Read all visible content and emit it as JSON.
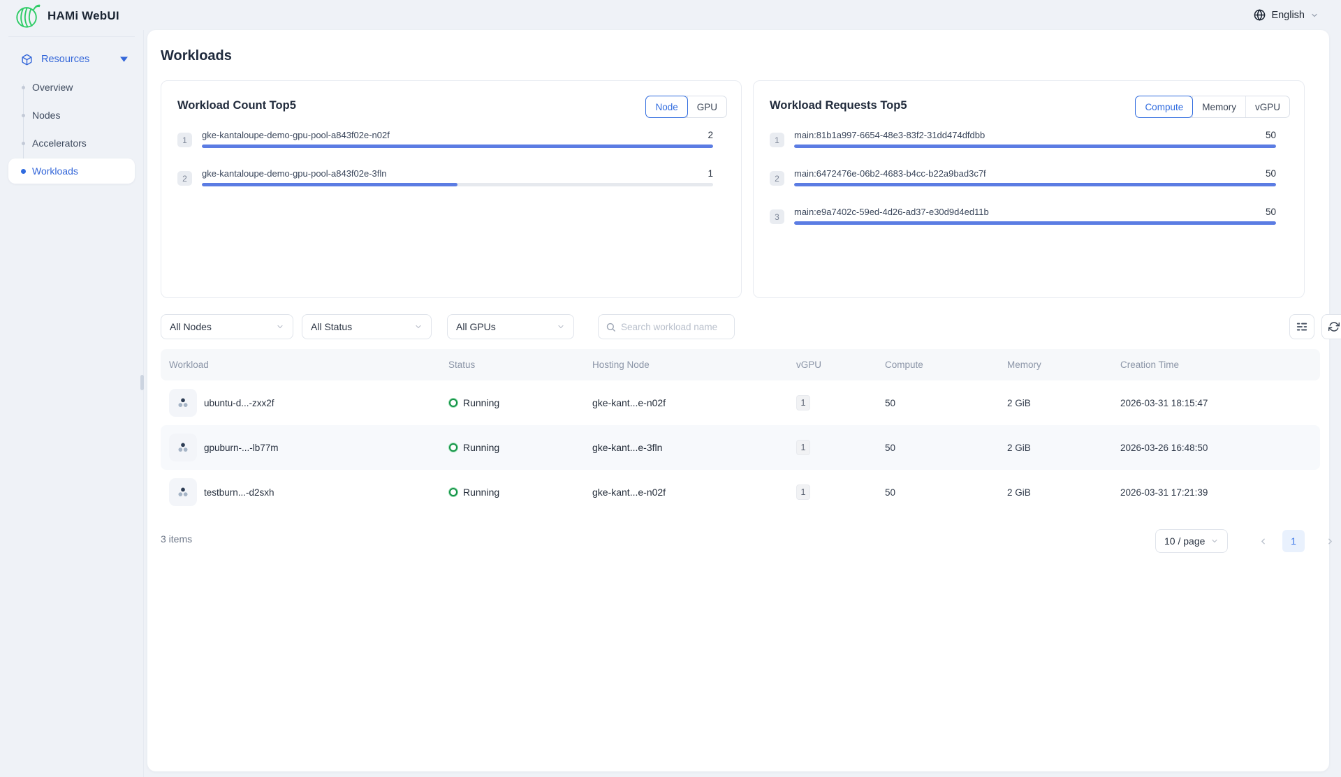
{
  "app": {
    "title": "HAMi WebUI",
    "language": "English"
  },
  "sidebar": {
    "section_label": "Resources",
    "items": [
      {
        "label": "Overview"
      },
      {
        "label": "Nodes"
      },
      {
        "label": "Accelerators"
      },
      {
        "label": "Workloads"
      }
    ]
  },
  "page": {
    "title": "Workloads"
  },
  "chart_data": [
    {
      "type": "bar",
      "title": "Workload Count Top5",
      "toggle_options": [
        "Node",
        "GPU"
      ],
      "selected_toggle": "Node",
      "categories": [
        "gke-kantaloupe-demo-gpu-pool-a843f02e-n02f",
        "gke-kantaloupe-demo-gpu-pool-a843f02e-3fln"
      ],
      "ranks": [
        "1",
        "2"
      ],
      "values": [
        2,
        1
      ],
      "max": 2,
      "bar_color": "#5b7ce3",
      "track_color": "#e6e9ee"
    },
    {
      "type": "bar",
      "title": "Workload Requests Top5",
      "toggle_options": [
        "Compute",
        "Memory",
        "vGPU"
      ],
      "selected_toggle": "Compute",
      "categories": [
        "main:81b1a997-6654-48e3-83f2-31dd474dfdbb",
        "main:6472476e-06b2-4683-b4cc-b22a9bad3c7f",
        "main:e9a7402c-59ed-4d26-ad37-e30d9d4ed11b"
      ],
      "ranks": [
        "1",
        "2",
        "3"
      ],
      "values": [
        50,
        50,
        50
      ],
      "max": 50,
      "bar_color": "#5b7ce3",
      "track_color": "#e6e9ee"
    }
  ],
  "filters": {
    "node_filter": "All Nodes",
    "status_filter": "All Status",
    "gpu_filter": "All GPUs",
    "search_placeholder": "Search workload name"
  },
  "table": {
    "columns": [
      "Workload",
      "Status",
      "Hosting Node",
      "vGPU",
      "Compute",
      "Memory",
      "Creation Time"
    ],
    "rows": [
      {
        "workload": "ubuntu-d...-zxx2f",
        "status": "Running",
        "hosting_node": "gke-kant...e-n02f",
        "vgpu": "1",
        "compute": "50",
        "memory": "2 GiB",
        "creation_time": "2026-03-31 18:15:47"
      },
      {
        "workload": "gpuburn-...-lb77m",
        "status": "Running",
        "hosting_node": "gke-kant...e-3fln",
        "vgpu": "1",
        "compute": "50",
        "memory": "2 GiB",
        "creation_time": "2026-03-26 16:48:50"
      },
      {
        "workload": "testburn...-d2sxh",
        "status": "Running",
        "hosting_node": "gke-kant...e-n02f",
        "vgpu": "1",
        "compute": "50",
        "memory": "2 GiB",
        "creation_time": "2026-03-31 17:21:39"
      }
    ]
  },
  "pagination": {
    "total_text": "3 items",
    "page_size": "10 / page",
    "current_page": "1"
  },
  "colors": {
    "accent": "#2f6bdf",
    "bar": "#5b7ce3",
    "logo_green": "#2fcc66",
    "running_green": "#149347"
  }
}
